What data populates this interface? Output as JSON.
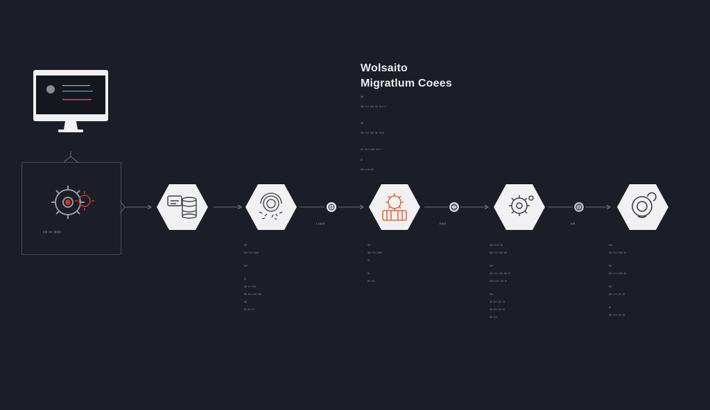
{
  "title": {
    "line1": "Wolsaito",
    "line2": "Migratlum Coees"
  },
  "notes": [
    {
      "head": "ᴵᴵᴵᴵ",
      "text": "ᴵᴵᴵᴵᴵ ᴵᴵᴵᴵ ᴵᴵᴵᴵᴵ ᴵᴵᴵᴵ ᴵᴵᴵᴵᴵ ᴵᴵ"
    },
    {
      "head": "ᴵᴵᴵᴵ",
      "text": "ᴵᴵᴵᴵᴵ ᴵᴵᴵᴵ ᴵᴵᴵᴵᴵ ᴵᴵᴵᴵ ᴵᴵᴵᴵᴵᴵ"
    },
    {
      "head": "ᴵᴵᴵᴵ ᴵᴵᴵᴵᴵ ᴵᴵᴵᴵᴵᴵ ᴵᴵᴵᴵᴵ ᴵ",
      "text": ""
    },
    {
      "head": "ᴵᴵᴵ",
      "text": "ᴵᴵᴵᴵᴵ ᴵᴵᴵᴵᴵ ᴵᴵᴵᴵ"
    }
  ],
  "frame_caption": "ᴵᴵᴵᴵᴵ ᴵᴵᴵᴵ ᴵᴵᴵᴵᴵᴵᴵᴵ",
  "connectors": [
    {
      "label": "ᴵ ᴵᴵᴵᴵᴵᴵᴵ"
    },
    {
      "label": "ᴵᴵᴵᴵᴵᴵᴵ"
    },
    {
      "label": "ᴵᴵᴵᴵᴵ"
    }
  ],
  "columns": [
    [
      "ᴵᴵᴵᴵ",
      "ᴵᴵᴵᴵᴵ ᴵᴵᴵᴵ ᴵᴵᴵᴵᴵᴵᴵ",
      "",
      "ᴵᴵᴵᴵᴵ",
      "",
      "ᴵᴵᴵ",
      "ᴵᴵᴵᴵ ᴵᴵᴵ ᴵᴵᴵᴵᴵ",
      "ᴵᴵᴵᴵ ᴵᴵᴵᴵ ᴵᴵᴵᴵᴵ ᴵᴵᴵᴵᴵ",
      "ᴵᴵᴵᴵ",
      "ᴵᴵᴵ ᴵᴵᴵᴵ ᴵᴵᴵ"
    ],
    [
      "ᴵᴵᴵᴵ",
      "ᴵᴵᴵᴵᴵ ᴵᴵᴵᴵ ᴵᴵᴵᴵᴵᴵᴵ",
      "ᴵᴵᴵ",
      "",
      "ᴵᴵᴵ",
      "ᴵᴵᴵᴵ ᴵᴵᴵᴵ"
    ],
    [
      "ᴵᴵᴵᴵᴵ ᴵᴵᴵᴵᴵ ᴵᴵᴵᴵ",
      "ᴵᴵᴵᴵᴵ ᴵᴵᴵᴵ ᴵᴵᴵᴵᴵ ᴵᴵᴵᴵ",
      "",
      "ᴵᴵᴵᴵᴵ",
      "ᴵᴵᴵᴵᴵ ᴵᴵᴵᴵ ᴵᴵᴵᴵᴵ ᴵᴵᴵᴵ ᴵᴵᴵ",
      "ᴵᴵᴵᴵᴵᴵ ᴵᴵᴵᴵᴵ ᴵᴵᴵᴵ ᴵᴵᴵ",
      "",
      "ᴵᴵᴵᴵᴵ",
      "ᴵᴵᴵᴵ ᴵᴵᴵᴵ ᴵᴵᴵᴵ ᴵᴵᴵ",
      "ᴵᴵᴵᴵ ᴵᴵᴵᴵ ᴵᴵᴵᴵ ᴵᴵᴵ",
      "ᴵᴵᴵᴵ ᴵᴵᴵᴵ"
    ],
    [
      "ᴵᴵᴵᴵᴵ",
      "ᴵᴵᴵᴵᴵ ᴵᴵᴵᴵ ᴵᴵᴵᴵᴵᴵ ᴵᴵᴵ",
      "",
      "ᴵᴵᴵᴵ",
      "ᴵᴵᴵᴵᴵ ᴵᴵᴵᴵ ᴵᴵᴵᴵᴵᴵ ᴵᴵᴵ",
      "",
      "ᴵᴵᴵᴵ",
      "ᴵᴵᴵᴵᴵ ᴵᴵᴵᴵ ᴵᴵᴵᴵ ᴵᴵᴵ",
      "",
      "ᴵᴵᴵ",
      "ᴵᴵᴵᴵᴵ ᴵᴵᴵᴵ ᴵᴵᴵᴵ ᴵᴵᴵ"
    ]
  ],
  "colors": {
    "background": "#1b1d27",
    "hexagon": "#f1f1f3",
    "accent": "#e06a3a",
    "gear_red": "#c0392b",
    "line": "#6a6d77"
  },
  "icons": [
    "monitor-icon",
    "gear-icon",
    "database-icon",
    "fingerprint-icon",
    "gear-cluster-icon",
    "cog-icon",
    "toilet-icon",
    "brain-node-icon"
  ]
}
